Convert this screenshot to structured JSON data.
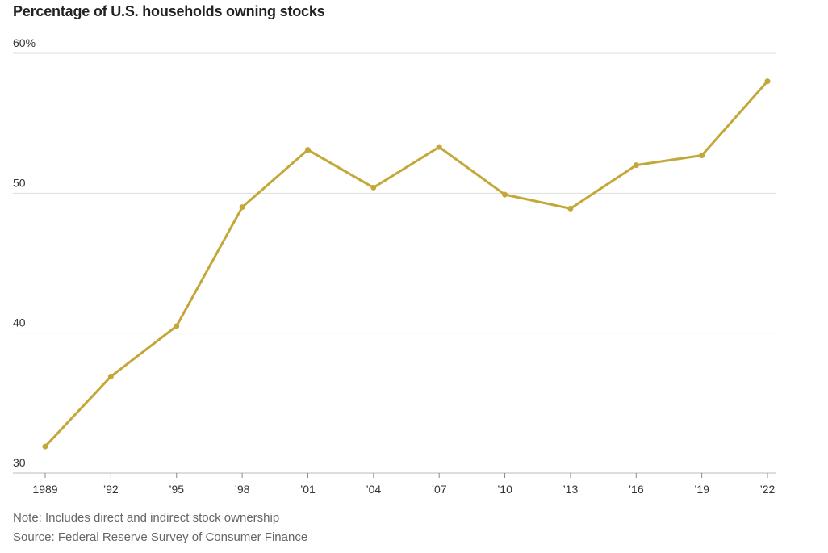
{
  "chart_data": {
    "type": "line",
    "title": "Percentage of U.S. households owning stocks",
    "x_tick_labels": [
      "1989",
      "’92",
      "’95",
      "’98",
      "’01",
      "’04",
      "’07",
      "’10",
      "’13",
      "’16",
      "’19",
      "’22"
    ],
    "y_tick_labels": [
      "30",
      "40",
      "50",
      "60%"
    ],
    "y_ticks": [
      30,
      40,
      50,
      60
    ],
    "ylim": [
      30,
      60
    ],
    "grid": true,
    "series": [
      {
        "x": [
          1989,
          1992,
          1995,
          1998,
          2001,
          2004,
          2007,
          2010,
          2013,
          2016,
          2019,
          2022
        ],
        "values": [
          31.9,
          36.9,
          40.5,
          49.0,
          53.1,
          50.4,
          53.3,
          49.9,
          48.9,
          52.0,
          52.7,
          58.0
        ],
        "color": "#c3a838"
      }
    ],
    "notes": [
      "Note: Includes direct and indirect stock ownership",
      "Source: Federal Reserve Survey of Consumer Finance"
    ]
  }
}
